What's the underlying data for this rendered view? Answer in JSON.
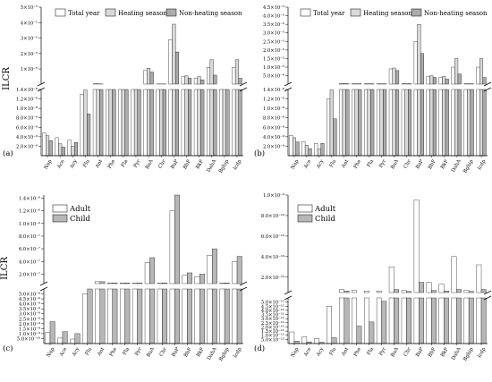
{
  "figure": {
    "y_axis_title": "ILCR"
  },
  "categories": [
    "Nap",
    "Ace",
    "Acy",
    "Flu",
    "Ant",
    "Phe",
    "Fla",
    "Pyr",
    "BaA",
    "Chr",
    "BaP",
    "BbF",
    "BkF",
    "DahA",
    "Bghip",
    "Icdp"
  ],
  "chart_data": [
    {
      "id": "a",
      "panel_label": "(a)",
      "type": "bar",
      "scale_break": true,
      "legend": [
        "Total year",
        "Heating season",
        "Non-heating season"
      ],
      "colors": [
        "#ffffff",
        "#d9d9d9",
        "#ababab"
      ],
      "lower": {
        "ylim": [
          0,
          1.4e-08
        ],
        "ticks": [
          [
            "2.0×10⁻⁹",
            2e-09
          ],
          [
            "4.0×10⁻⁹",
            4e-09
          ],
          [
            "6.0×10⁻⁹",
            6e-09
          ],
          [
            "8.0×10⁻⁹",
            8e-09
          ],
          [
            "1.0×10⁻⁸",
            1e-08
          ],
          [
            "1.2×10⁻⁸",
            1.2e-08
          ],
          [
            "1.4×10⁻⁸",
            1.4e-08
          ]
        ]
      },
      "upper": {
        "ylim": [
          2e-07,
          5e-05
        ],
        "ticks": [
          [
            "1×10⁻⁵",
            1e-05
          ],
          [
            "2×10⁻⁵",
            2e-05
          ],
          [
            "3×10⁻⁵",
            3e-05
          ],
          [
            "4×10⁻⁵",
            4e-05
          ],
          [
            "5×10⁻⁵",
            5e-05
          ]
        ]
      },
      "series": [
        {
          "name": "Total year",
          "values": [
            4.8e-09,
            3.8e-09,
            3.3e-09,
            1.3e-08,
            4e-07,
            2e-07,
            2e-07,
            2e-07,
            9e-06,
            3e-07,
            2.9e-05,
            5e-06,
            4e-06,
            1.1e-05,
            2e-07,
            1.1e-05
          ]
        },
        {
          "name": "Heating season",
          "values": [
            4.2e-09,
            2.5e-09,
            2e-09,
            1.39e-08,
            4e-07,
            2e-07,
            2e-07,
            2e-07,
            1.05e-05,
            3e-07,
            3.9e-05,
            5.5e-06,
            5e-06,
            1.6e-05,
            2e-07,
            1.6e-05
          ]
        },
        {
          "name": "Non-heating season",
          "values": [
            3.2e-09,
            1.8e-09,
            2.8e-09,
            8.8e-09,
            3e-07,
            2e-07,
            2e-07,
            2e-07,
            8e-06,
            3e-07,
            2.1e-05,
            4e-06,
            3e-06,
            6e-06,
            2e-07,
            4e-06
          ]
        }
      ]
    },
    {
      "id": "b",
      "panel_label": "(b)",
      "type": "bar",
      "scale_break": true,
      "legend": [
        "Total year",
        "Heating season",
        "Non-heating season"
      ],
      "colors": [
        "#ffffff",
        "#d9d9d9",
        "#ababab"
      ],
      "lower": {
        "ylim": [
          0,
          1.4e-08
        ],
        "ticks": [
          [
            "2.0×10⁻⁹",
            2e-09
          ],
          [
            "4.0×10⁻⁹",
            4e-09
          ],
          [
            "6.0×10⁻⁹",
            6e-09
          ],
          [
            "8.0×10⁻⁹",
            8e-09
          ],
          [
            "1.0×10⁻⁸",
            1e-08
          ],
          [
            "1.2×10⁻⁸",
            1.2e-08
          ],
          [
            "1.4×10⁻⁸",
            1.4e-08
          ]
        ]
      },
      "upper": {
        "ylim": [
          1e-07,
          4.5e-05
        ],
        "ticks": [
          [
            "5.0×10⁻⁶",
            5e-06
          ],
          [
            "1.0×10⁻⁵",
            1e-05
          ],
          [
            "1.5×10⁻⁵",
            1.5e-05
          ],
          [
            "2.0×10⁻⁵",
            2e-05
          ],
          [
            "2.5×10⁻⁵",
            2.5e-05
          ],
          [
            "3.0×10⁻⁵",
            3e-05
          ],
          [
            "3.5×10⁻⁵",
            3.5e-05
          ],
          [
            "4.0×10⁻⁵",
            4e-05
          ],
          [
            "4.5×10⁻⁵",
            4.5e-05
          ]
        ]
      },
      "series": [
        {
          "name": "Total year",
          "values": [
            4.3e-09,
            3e-09,
            2.6e-09,
            1.2e-08,
            4e-07,
            2e-07,
            2e-07,
            2e-07,
            9e-06,
            3e-07,
            2.5e-05,
            4.5e-06,
            4e-06,
            1e-05,
            2e-07,
            1e-05
          ]
        },
        {
          "name": "Heating season",
          "values": [
            3.8e-09,
            2.2e-09,
            1.4e-09,
            1.39e-08,
            4e-07,
            2e-07,
            2e-07,
            2e-07,
            9.5e-06,
            3e-07,
            3.5e-05,
            5e-06,
            4.5e-06,
            1.5e-05,
            2e-07,
            1.5e-05
          ]
        },
        {
          "name": "Non-heating season",
          "values": [
            2.9e-09,
            1.5e-09,
            2.6e-09,
            7.8e-09,
            3e-07,
            2e-07,
            2e-07,
            2e-07,
            8e-06,
            3e-07,
            1.8e-05,
            4e-06,
            3e-06,
            6e-06,
            2e-07,
            4e-06
          ]
        }
      ]
    },
    {
      "id": "c",
      "panel_label": "(c)",
      "type": "bar",
      "scale_break": true,
      "legend": [
        "Adult",
        "Child"
      ],
      "colors": [
        "#ffffff",
        "#b7b7b7"
      ],
      "lower": {
        "ylim": [
          0,
          5.5e-09
        ],
        "ticks": [
          [
            "5.0×10⁻¹⁰",
            5e-10
          ],
          [
            "1.0×10⁻⁹",
            1e-09
          ],
          [
            "1.5×10⁻⁹",
            1.5e-09
          ],
          [
            "2.0×10⁻⁹",
            2e-09
          ],
          [
            "2.5×10⁻⁹",
            2.5e-09
          ],
          [
            "3.0×10⁻⁹",
            3e-09
          ],
          [
            "3.5×10⁻⁹",
            3.5e-09
          ],
          [
            "4.0×10⁻⁹",
            4e-09
          ],
          [
            "4.5×10⁻⁹",
            4.5e-09
          ],
          [
            "5.0×10⁻⁹",
            5e-09
          ]
        ]
      },
      "upper": {
        "ylim": [
          5e-08,
          1.45e-06
        ],
        "ticks": [
          [
            "2.0×10⁻⁷",
            2e-07
          ],
          [
            "4.0×10⁻⁷",
            4e-07
          ],
          [
            "6.0×10⁻⁷",
            6e-07
          ],
          [
            "8.0×10⁻⁷",
            8e-07
          ],
          [
            "1.0×10⁻⁶",
            1e-06
          ],
          [
            "1.2×10⁻⁶",
            1.2e-06
          ],
          [
            "1.4×10⁻⁶",
            1.4e-06
          ]
        ]
      },
      "series": [
        {
          "name": "Adult",
          "values": [
            1.1e-09,
            5.5e-10,
            4.5e-10,
            5e-09,
            8e-08,
            6e-08,
            6e-08,
            6e-08,
            3.8e-07,
            6e-08,
            1.2e-06,
            1.8e-07,
            1.6e-07,
            5e-07,
            6e-08,
            4e-07
          ]
        },
        {
          "name": "Child",
          "values": [
            2.2e-09,
            1.2e-09,
            1e-09,
            5.5e-09,
            8e-08,
            6e-08,
            6e-08,
            6e-08,
            4.6e-07,
            6e-08,
            1.45e-06,
            2.2e-07,
            2e-07,
            6e-07,
            6e-08,
            4.8e-07
          ]
        }
      ]
    },
    {
      "id": "d",
      "panel_label": "(d)",
      "type": "bar",
      "scale_break": true,
      "legend": [
        "Adult",
        "Child"
      ],
      "colors": [
        "#ffffff",
        "#b7b7b7"
      ],
      "lower": {
        "ylim": [
          0,
          5.5e-11
        ],
        "ticks": [
          [
            "5.0×10⁻¹²",
            5e-12
          ],
          [
            "1.0×10⁻¹¹",
            1e-11
          ],
          [
            "1.5×10⁻¹¹",
            1.5e-11
          ],
          [
            "2.0×10⁻¹¹",
            2e-11
          ],
          [
            "2.5×10⁻¹¹",
            2.5e-11
          ],
          [
            "3.0×10⁻¹¹",
            3e-11
          ],
          [
            "3.5×10⁻¹¹",
            3.5e-11
          ],
          [
            "4.0×10⁻¹¹",
            4e-11
          ],
          [
            "4.5×10⁻¹¹",
            4.5e-11
          ],
          [
            "5.0×10⁻¹¹",
            5e-11
          ]
        ]
      },
      "upper": {
        "ylim": [
          5e-11,
          1e-09
        ],
        "ticks": [
          [
            "2.0×10⁻¹⁰",
            2e-10
          ],
          [
            "4.0×10⁻¹⁰",
            4e-10
          ],
          [
            "6.0×10⁻¹⁰",
            6e-10
          ],
          [
            "8.0×10⁻¹⁰",
            8e-10
          ],
          [
            "1.0×10⁻⁹",
            1e-09
          ]
        ]
      },
      "series": [
        {
          "name": "Adult",
          "values": [
            1.4e-11,
            8e-12,
            6e-12,
            4.5e-11,
            8e-11,
            7e-11,
            6.5e-11,
            6.5e-11,
            3e-10,
            7e-11,
            9.5e-10,
            1.5e-10,
            1.3e-10,
            4e-10,
            7e-11,
            3.2e-10
          ]
        },
        {
          "name": "Child",
          "values": [
            3e-12,
            2e-12,
            1.5e-12,
            7e-12,
            6.5e-11,
            2.1e-11,
            2.6e-11,
            5.1e-11,
            8e-11,
            6e-11,
            1.5e-10,
            7e-11,
            6.5e-11,
            8e-11,
            6e-11,
            8e-11
          ]
        }
      ]
    }
  ]
}
